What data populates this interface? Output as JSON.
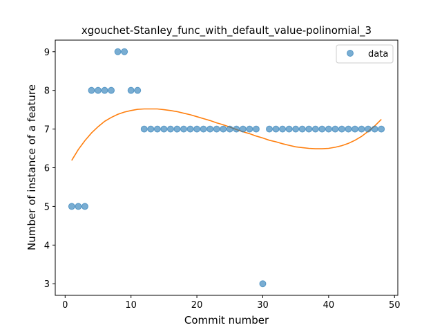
{
  "chart_data": {
    "type": "scatter",
    "title": "xgouchet-Stanley_func_with_default_value-polinomial_3",
    "xlabel": "Commit number",
    "ylabel": "Number of instance of a feature",
    "xlim": [
      -1.5,
      50.5
    ],
    "ylim": [
      2.7,
      9.3
    ],
    "x_ticks": [
      0,
      10,
      20,
      30,
      40,
      50
    ],
    "y_ticks": [
      3,
      4,
      5,
      6,
      7,
      8,
      9
    ],
    "grid": false,
    "legend_position": "top-right",
    "series": [
      {
        "name": "data",
        "kind": "scatter",
        "color": "#1f77b4",
        "x": [
          1,
          2,
          3,
          4,
          5,
          6,
          7,
          8,
          9,
          10,
          11,
          12,
          13,
          14,
          15,
          16,
          17,
          18,
          19,
          20,
          21,
          22,
          23,
          24,
          25,
          26,
          27,
          28,
          29,
          30,
          31,
          32,
          33,
          34,
          35,
          36,
          37,
          38,
          39,
          40,
          41,
          42,
          43,
          44,
          45,
          46,
          47,
          48
        ],
        "y": [
          5,
          5,
          5,
          8,
          8,
          8,
          8,
          9,
          9,
          8,
          8,
          7,
          7,
          7,
          7,
          7,
          7,
          7,
          7,
          7,
          7,
          7,
          7,
          7,
          7,
          7,
          7,
          7,
          7,
          3,
          7,
          7,
          7,
          7,
          7,
          7,
          7,
          7,
          7,
          7,
          7,
          7,
          7,
          7,
          7,
          7,
          7,
          7
        ]
      },
      {
        "kind": "line",
        "color": "#ff7f0e",
        "x": [
          1,
          2,
          3,
          4,
          5,
          6,
          7,
          8,
          9,
          10,
          11,
          12,
          13,
          14,
          15,
          16,
          17,
          18,
          19,
          20,
          21,
          22,
          23,
          24,
          25,
          26,
          27,
          28,
          29,
          30,
          31,
          32,
          33,
          34,
          35,
          36,
          37,
          38,
          39,
          40,
          41,
          42,
          43,
          44,
          45,
          46,
          47,
          48
        ],
        "y": [
          6.19,
          6.47,
          6.7,
          6.9,
          7.06,
          7.2,
          7.3,
          7.38,
          7.44,
          7.48,
          7.51,
          7.52,
          7.52,
          7.52,
          7.5,
          7.48,
          7.45,
          7.41,
          7.37,
          7.32,
          7.27,
          7.22,
          7.16,
          7.11,
          7.05,
          6.99,
          6.93,
          6.88,
          6.82,
          6.77,
          6.71,
          6.67,
          6.62,
          6.58,
          6.54,
          6.52,
          6.5,
          6.49,
          6.49,
          6.5,
          6.53,
          6.57,
          6.63,
          6.71,
          6.81,
          6.94,
          7.08,
          7.25
        ]
      }
    ]
  }
}
